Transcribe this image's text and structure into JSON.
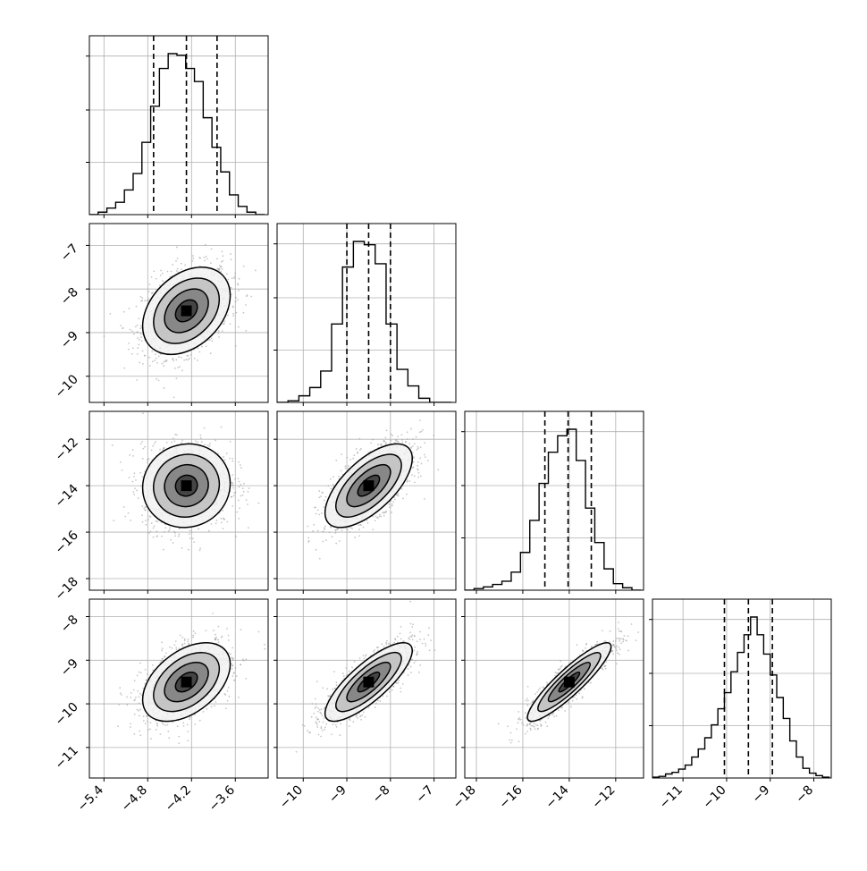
{
  "chart_data": {
    "type": "corner",
    "grid": true,
    "ticks": [
      {
        "values": [
          -5.4,
          -4.8,
          -4.2,
          -3.6
        ],
        "labels": [
          "−5.4",
          "−4.8",
          "−4.2",
          "−3.6"
        ],
        "lim": [
          -5.6,
          -3.15
        ]
      },
      {
        "values": [
          -10,
          -9,
          -8,
          -7
        ],
        "labels": [
          "−10",
          "−9",
          "−8",
          "−7"
        ],
        "lim": [
          -10.6,
          -6.5
        ]
      },
      {
        "values": [
          -18,
          -16,
          -14,
          -12
        ],
        "labels": [
          "−18",
          "−16",
          "−14",
          "−12"
        ],
        "lim": [
          -18.5,
          -10.8
        ]
      },
      {
        "values": [
          -11,
          -10,
          -9,
          -8
        ],
        "labels": [
          "−11",
          "−10",
          "−9",
          "−8"
        ],
        "lim": [
          -11.7,
          -7.6
        ]
      }
    ],
    "histograms": [
      {
        "edges": [
          -5.6,
          -5.48,
          -5.36,
          -5.24,
          -5.12,
          -5.0,
          -4.88,
          -4.76,
          -4.64,
          -4.52,
          -4.4,
          -4.28,
          -4.16,
          -4.04,
          -3.92,
          -3.8,
          -3.68,
          -3.56,
          -3.44,
          -3.32,
          -3.2
        ],
        "counts": [
          0,
          3,
          8,
          15,
          30,
          50,
          88,
          132,
          178,
          196,
          194,
          178,
          162,
          118,
          82,
          52,
          24,
          10,
          3,
          0
        ],
        "quantiles": [
          -4.72,
          -4.27,
          -3.85
        ]
      },
      {
        "edges": [
          -10.6,
          -10.35,
          -10.1,
          -9.85,
          -9.6,
          -9.35,
          -9.1,
          -8.85,
          -8.6,
          -8.35,
          -8.1,
          -7.85,
          -7.6,
          -7.35,
          -7.1,
          -6.85,
          -6.6
        ],
        "counts": [
          0,
          2,
          8,
          18,
          38,
          95,
          164,
          195,
          191,
          168,
          95,
          40,
          20,
          5,
          0,
          0
        ],
        "quantiles": [
          -9.0,
          -8.5,
          -8.0
        ]
      },
      {
        "edges": [
          -18.5,
          -18.1,
          -17.7,
          -17.3,
          -16.9,
          -16.5,
          -16.1,
          -15.7,
          -15.3,
          -14.9,
          -14.5,
          -14.1,
          -13.7,
          -13.3,
          -12.9,
          -12.5,
          -12.1,
          -11.7,
          -11.3,
          -10.9
        ],
        "counts": [
          0,
          2,
          4,
          7,
          11,
          22,
          46,
          85,
          130,
          168,
          188,
          196,
          158,
          100,
          58,
          26,
          8,
          3,
          0
        ],
        "quantiles": [
          -15.05,
          -14.05,
          -13.05
        ]
      },
      {
        "edges": [
          -11.7,
          -11.55,
          -11.4,
          -11.25,
          -11.1,
          -10.95,
          -10.8,
          -10.65,
          -10.5,
          -10.35,
          -10.2,
          -10.05,
          -9.9,
          -9.75,
          -9.6,
          -9.45,
          -9.3,
          -9.15,
          -9.0,
          -8.85,
          -8.7,
          -8.55,
          -8.4,
          -8.25,
          -8.1,
          -7.95,
          -7.8,
          -7.65
        ],
        "counts": [
          1,
          2,
          5,
          7,
          11,
          16,
          26,
          36,
          50,
          66,
          86,
          106,
          132,
          156,
          178,
          200,
          178,
          154,
          128,
          100,
          74,
          46,
          26,
          12,
          6,
          3,
          1
        ],
        "quantiles": [
          -10.05,
          -9.5,
          -8.95
        ]
      }
    ],
    "pairs": [
      {
        "row": 1,
        "col": 0,
        "mean": [
          -4.27,
          -8.5
        ],
        "sd": [
          0.3,
          0.5
        ],
        "corr": 0.35
      },
      {
        "row": 2,
        "col": 0,
        "mean": [
          -4.27,
          -14.0
        ],
        "sd": [
          0.3,
          0.9
        ],
        "corr": 0.05
      },
      {
        "row": 2,
        "col": 1,
        "mean": [
          -8.5,
          -14.0
        ],
        "sd": [
          0.5,
          0.9
        ],
        "corr": 0.65
      },
      {
        "row": 3,
        "col": 0,
        "mean": [
          -4.27,
          -9.5
        ],
        "sd": [
          0.3,
          0.45
        ],
        "corr": 0.45
      },
      {
        "row": 3,
        "col": 1,
        "mean": [
          -8.5,
          -9.5
        ],
        "sd": [
          0.5,
          0.45
        ],
        "corr": 0.8
      },
      {
        "row": 3,
        "col": 2,
        "mean": [
          -14.0,
          -9.5
        ],
        "sd": [
          0.9,
          0.45
        ],
        "corr": 0.9
      }
    ],
    "contour_levels_sigma": [
      0.5,
      1.0,
      1.5,
      2.0
    ],
    "colors": {
      "line": "#000000",
      "grid": "#b0b0b0",
      "points": "#a0a0a0"
    }
  }
}
